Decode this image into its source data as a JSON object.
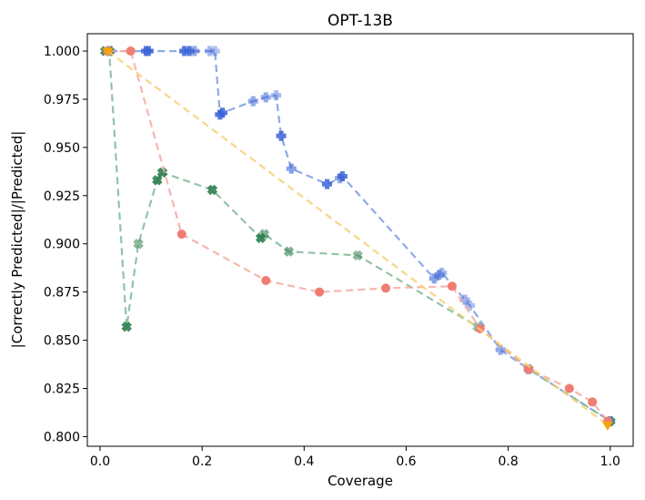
{
  "chart_data": {
    "type": "scatter",
    "title": "OPT-13B",
    "xlabel": "Coverage",
    "ylabel": "|Correctly Predicted|/|Predicted|",
    "xlim": [
      -0.025,
      1.045
    ],
    "ylim": [
      0.795,
      1.009
    ],
    "xticks": [
      0.0,
      0.2,
      0.4,
      0.6,
      0.8,
      1.0
    ],
    "xtick_labels": [
      "0.0",
      "0.2",
      "0.4",
      "0.6",
      "0.8",
      "1.0"
    ],
    "yticks": [
      0.8,
      0.825,
      0.85,
      0.875,
      0.9,
      0.925,
      0.95,
      0.975,
      1.0
    ],
    "ytick_labels": [
      "0.800",
      "0.825",
      "0.850",
      "0.875",
      "0.900",
      "0.925",
      "0.950",
      "0.975",
      "1.000"
    ],
    "grid": false,
    "legend": "none",
    "series": [
      {
        "name": "blue",
        "color": "#3a63d6",
        "line_color": "#7b9be0",
        "marker": "plus",
        "x": [
          0.02,
          0.09,
          0.095,
          0.165,
          0.175,
          0.185,
          0.215,
          0.225,
          0.235,
          0.24,
          0.3,
          0.325,
          0.345,
          0.355,
          0.375,
          0.445,
          0.47,
          0.475,
          0.655,
          0.665,
          0.67,
          0.715,
          0.725,
          0.785,
          0.84,
          1.0
        ],
        "y": [
          1.0,
          1.0,
          1.0,
          1.0,
          1.0,
          1.0,
          1.0,
          1.0,
          0.967,
          0.968,
          0.974,
          0.976,
          0.977,
          0.956,
          0.939,
          0.931,
          0.934,
          0.935,
          0.882,
          0.884,
          0.885,
          0.871,
          0.868,
          0.845,
          0.835,
          0.808
        ],
        "alpha": [
          0.55,
          0.85,
          0.85,
          0.85,
          0.85,
          0.55,
          0.45,
          0.4,
          0.85,
          0.85,
          0.55,
          0.55,
          0.45,
          0.85,
          0.6,
          0.85,
          0.55,
          0.85,
          0.6,
          0.55,
          0.45,
          0.5,
          0.4,
          0.55,
          0.45,
          0.7
        ]
      },
      {
        "name": "green",
        "color": "#2e7d4f",
        "line_color": "#7fba97",
        "marker": "x",
        "x": [
          0.01,
          0.018,
          0.052,
          0.075,
          0.112,
          0.122,
          0.22,
          0.315,
          0.322,
          0.37,
          0.505,
          0.74,
          0.84,
          1.0
        ],
        "y": [
          1.0,
          1.0,
          0.857,
          0.9,
          0.933,
          0.937,
          0.928,
          0.903,
          0.905,
          0.896,
          0.894,
          0.857,
          0.835,
          0.808
        ],
        "alpha": [
          0.85,
          0.85,
          0.9,
          0.55,
          0.9,
          0.9,
          0.9,
          0.9,
          0.6,
          0.6,
          0.55,
          0.5,
          0.5,
          0.7
        ]
      },
      {
        "name": "red",
        "color": "#f07c72",
        "line_color": "#f4a9a1",
        "marker": "circle",
        "x": [
          0.015,
          0.06,
          0.16,
          0.325,
          0.43,
          0.56,
          0.69,
          0.745,
          0.84,
          0.92,
          0.965,
          0.995
        ],
        "y": [
          1.0,
          1.0,
          0.905,
          0.881,
          0.875,
          0.877,
          0.878,
          0.856,
          0.835,
          0.825,
          0.818,
          0.808
        ],
        "alpha": [
          1,
          1,
          1,
          1,
          1,
          1,
          1,
          1,
          1,
          1,
          1,
          1
        ]
      },
      {
        "name": "orange",
        "color": "#f5a300",
        "line_color": "#f6cf72",
        "marker": "triangle_down",
        "x": [
          0.015,
          0.995
        ],
        "y": [
          1.0,
          0.806
        ],
        "alpha": [
          1,
          1
        ]
      }
    ]
  }
}
